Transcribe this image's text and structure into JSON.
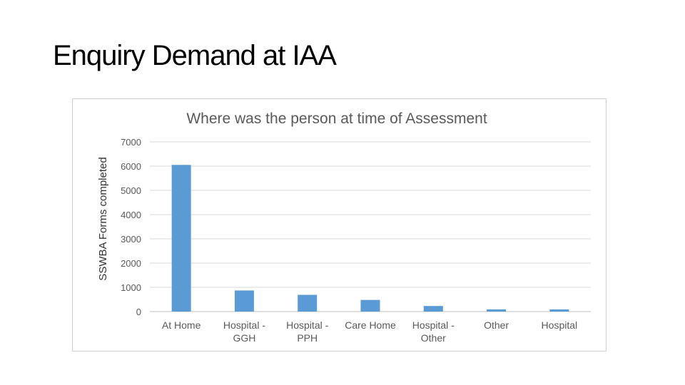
{
  "slide": {
    "title": "Enquiry Demand at IAA"
  },
  "colors": {
    "bar": "#5b9bd5",
    "gridline": "#d9d9d9",
    "axis_text": "#595959",
    "frame_border": "#d0d0d0"
  },
  "chart_data": {
    "type": "bar",
    "title": "Where was the person at time of Assessment",
    "xlabel": "",
    "ylabel": "SSWBA Forms completed",
    "categories": [
      [
        "At Home"
      ],
      [
        "Hospital -",
        "GGH"
      ],
      [
        "Hospital -",
        "PPH"
      ],
      [
        "Care Home"
      ],
      [
        "Hospital -",
        "Other"
      ],
      [
        "Other"
      ],
      [
        "Hospital"
      ]
    ],
    "values": [
      6050,
      870,
      690,
      480,
      230,
      90,
      90
    ],
    "yticks": [
      "0",
      "1000",
      "2000",
      "3000",
      "4000",
      "5000",
      "6000",
      "7000"
    ],
    "ylim": [
      0,
      7000
    ],
    "grid": true,
    "legend": "none"
  }
}
